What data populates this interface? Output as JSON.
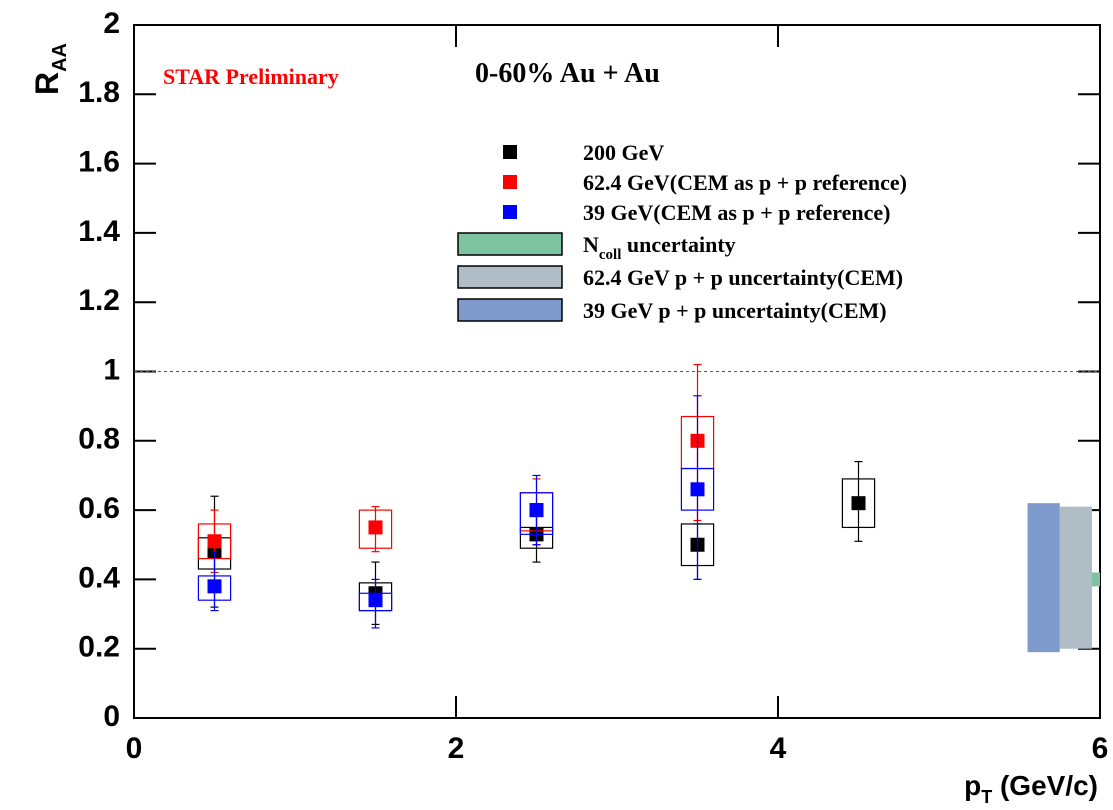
{
  "chart_data": {
    "type": "scatter",
    "title": "0-60% Au + Au",
    "annotation": "STAR Preliminary",
    "xlabel": {
      "main": "p",
      "sub": "T",
      "rest": " (GeV/c)"
    },
    "ylabel": {
      "main": "R",
      "sub": "AA"
    },
    "xlim": [
      0,
      6
    ],
    "ylim": [
      0,
      2
    ],
    "xticks": [
      0,
      2,
      4,
      6
    ],
    "yticks": [
      0,
      0.2,
      0.4,
      0.6,
      0.8,
      1,
      1.2,
      1.4,
      1.6,
      1.8,
      2
    ],
    "reference_line": 1,
    "series": [
      {
        "name": "200 GeV",
        "color": "#000000",
        "x": [
          0.5,
          1.5,
          2.5,
          3.5,
          4.5
        ],
        "values": [
          0.48,
          0.36,
          0.53,
          0.5,
          0.62
        ],
        "stat_low": [
          0.32,
          0.27,
          0.45,
          0.4,
          0.51
        ],
        "stat_high": [
          0.64,
          0.45,
          0.59,
          0.56,
          0.74
        ],
        "sys_low": [
          0.43,
          0.31,
          0.49,
          0.44,
          0.55
        ],
        "sys_high": [
          0.52,
          0.39,
          0.55,
          0.56,
          0.69
        ]
      },
      {
        "name": "62.4 GeV(CEM as p + p reference)",
        "color": "#ff0000",
        "x": [
          0.5,
          1.5,
          2.5,
          3.5
        ],
        "values": [
          0.51,
          0.55,
          0.6,
          0.8
        ],
        "stat_low": [
          0.42,
          0.48,
          0.5,
          0.57
        ],
        "stat_high": [
          0.6,
          0.61,
          0.69,
          1.02
        ],
        "sys_low": [
          0.46,
          0.49,
          0.54,
          0.72
        ],
        "sys_high": [
          0.56,
          0.6,
          0.65,
          0.87
        ]
      },
      {
        "name": "39 GeV(CEM as p + p reference)",
        "color": "#0000ff",
        "x": [
          0.5,
          1.5,
          2.5,
          3.5
        ],
        "values": [
          0.38,
          0.34,
          0.6,
          0.66
        ],
        "stat_low": [
          0.31,
          0.26,
          0.5,
          0.4
        ],
        "stat_high": [
          0.48,
          0.4,
          0.7,
          0.93
        ],
        "sys_low": [
          0.34,
          0.31,
          0.53,
          0.6
        ],
        "sys_high": [
          0.41,
          0.36,
          0.65,
          0.72
        ]
      }
    ],
    "bands": [
      {
        "name": {
          "main": "N",
          "sub": "coll",
          "rest": " uncertainty"
        },
        "color": "#7fc4a0",
        "x": [
          5.95,
          6
        ],
        "y": [
          0.38,
          0.42
        ]
      },
      {
        "name": {
          "main": "62.4 GeV p + p uncertainty(CEM)"
        },
        "color": "#b0bcc6",
        "x": [
          5.75,
          5.95
        ],
        "y": [
          0.2,
          0.61
        ]
      },
      {
        "name": {
          "main": "39 GeV p + p uncertainty(CEM)"
        },
        "color": "#7e9acd",
        "x": [
          5.55,
          5.75
        ],
        "y": [
          0.19,
          0.62
        ]
      }
    ]
  }
}
